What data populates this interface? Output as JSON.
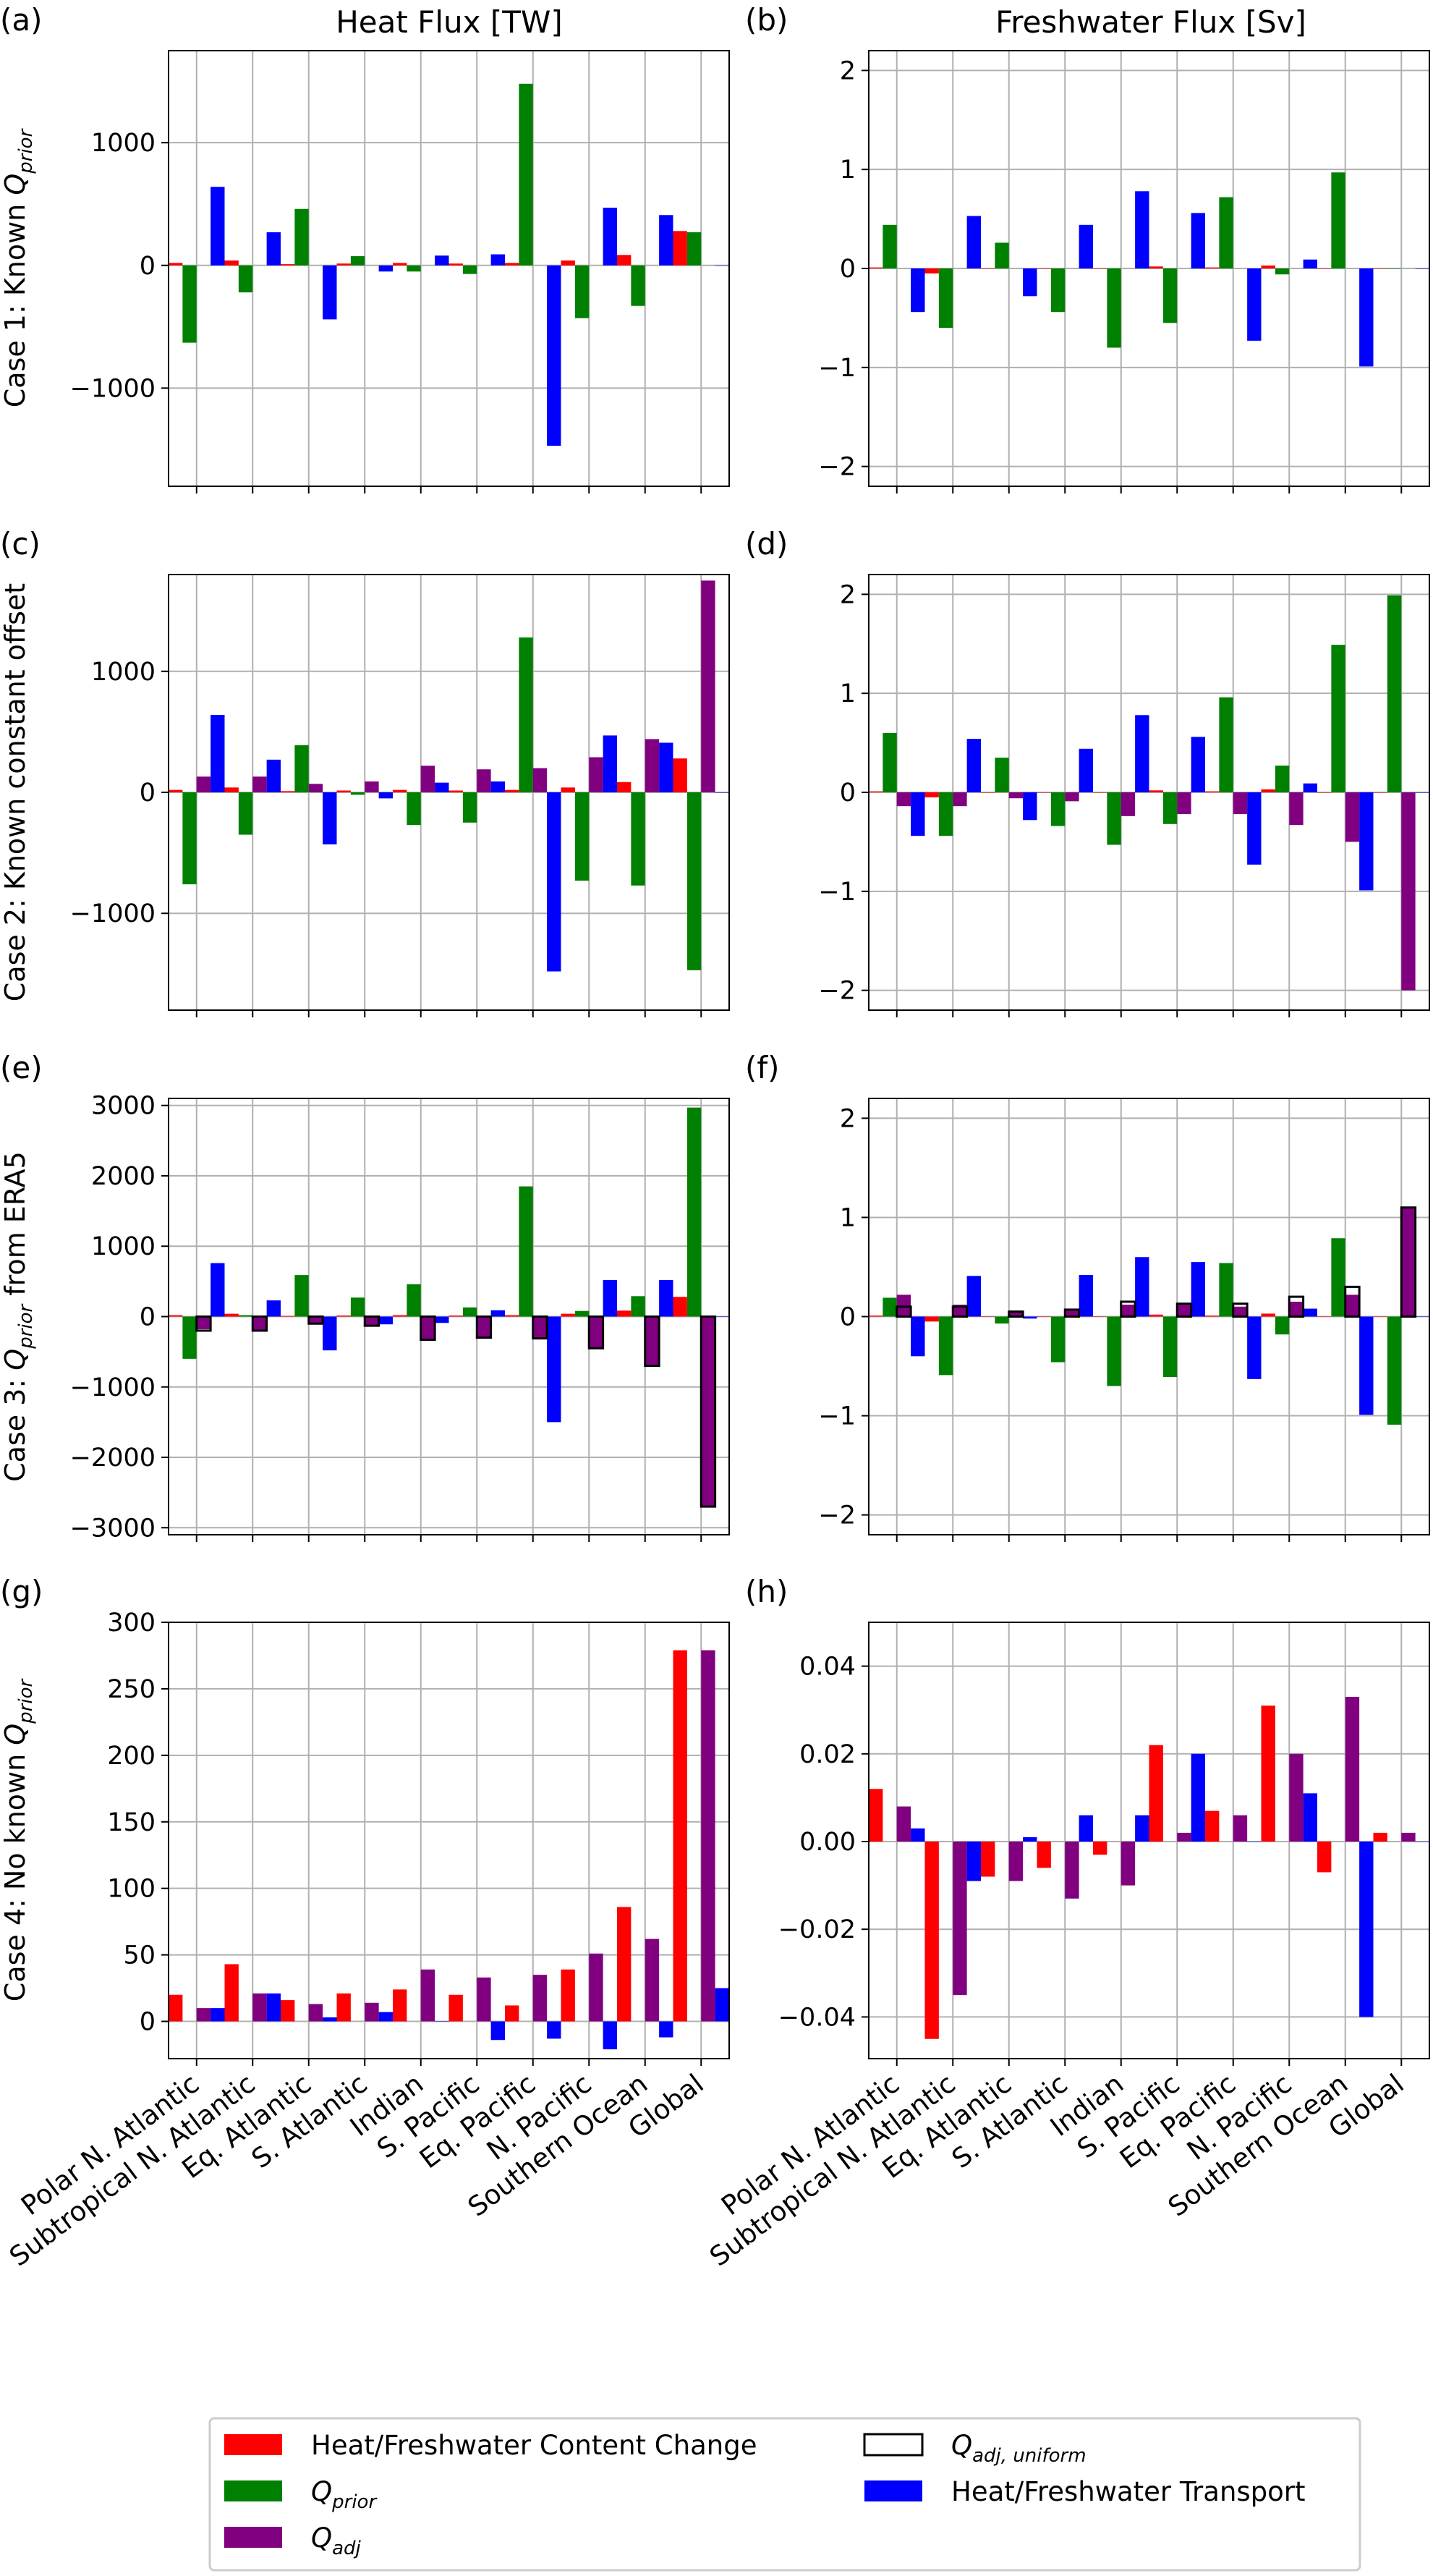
{
  "column_titles": [
    "Heat Flux [TW]",
    "Freshwater Flux [Sv]"
  ],
  "categories": [
    "Polar N. Atlantic",
    "Subtropical N. Atlantic",
    "Eq. Atlantic",
    "S. Atlantic",
    "Indian",
    "S. Pacific",
    "Eq. Pacific",
    "N. Pacific",
    "Southern Ocean",
    "Global"
  ],
  "colors": {
    "content_change": "#ff0000",
    "q_prior": "#008000",
    "q_adj": "#800080",
    "transport": "#0000ff",
    "q_adj_uniform_edge": "#000000",
    "grid": "#b0b0b0"
  },
  "legend": {
    "entries": [
      {
        "label": "Heat/Freshwater Content Change",
        "color": "#ff0000",
        "style": "filled"
      },
      {
        "label": "Q_prior",
        "label_main": "Q",
        "label_sub": "prior",
        "color": "#008000",
        "style": "filled"
      },
      {
        "label": "Q_adj",
        "label_main": "Q",
        "label_sub": "adj",
        "color": "#800080",
        "style": "filled"
      },
      {
        "label": "Q_adj,uniform",
        "label_main": "Q",
        "label_sub": "adj, uniform",
        "color": "#000000",
        "style": "outline"
      },
      {
        "label": "Heat/Freshwater Transport",
        "color": "#0000ff",
        "style": "filled"
      }
    ]
  },
  "chart_data": [
    {
      "panel": "(a)",
      "type": "bar",
      "ylabel": "Case 1: Known Q_prior",
      "ylabel_main": "Case 1: Known ",
      "ylabel_italic": "Q",
      "ylabel_sub": "prior",
      "ylim": [
        -1800,
        1750
      ],
      "yticks": [
        -1000,
        0,
        1000
      ],
      "ytick_labels": [
        "−1000",
        "0",
        "1000"
      ],
      "grid": true,
      "series": [
        {
          "key": "content_change",
          "values": [
            20,
            40,
            10,
            15,
            20,
            15,
            20,
            40,
            85,
            280
          ]
        },
        {
          "key": "q_prior",
          "values": [
            -630,
            -220,
            460,
            75,
            -50,
            -70,
            1480,
            -430,
            -330,
            270
          ]
        },
        {
          "key": "transport",
          "values": [
            640,
            270,
            -440,
            -50,
            80,
            90,
            -1470,
            470,
            410,
            0
          ]
        }
      ]
    },
    {
      "panel": "(b)",
      "type": "bar",
      "ylim": [
        -2.2,
        2.2
      ],
      "yticks": [
        -2,
        -1,
        0,
        1,
        2
      ],
      "ytick_labels": [
        "−2",
        "−1",
        "0",
        "1",
        "2"
      ],
      "grid": true,
      "series": [
        {
          "key": "content_change",
          "values": [
            0.01,
            -0.05,
            0.0,
            0.0,
            0.0,
            0.02,
            0.01,
            0.03,
            0.0,
            0.0
          ]
        },
        {
          "key": "q_prior",
          "values": [
            0.44,
            -0.6,
            0.26,
            -0.44,
            -0.8,
            -0.55,
            0.72,
            -0.06,
            0.97,
            0.0
          ]
        },
        {
          "key": "transport",
          "values": [
            -0.44,
            0.53,
            -0.28,
            0.44,
            0.78,
            0.56,
            -0.73,
            0.09,
            -0.99,
            0.0
          ]
        }
      ]
    },
    {
      "panel": "(c)",
      "type": "bar",
      "ylabel": "Case 2: Known constant offset",
      "ylim": [
        -1800,
        1800
      ],
      "yticks": [
        -1000,
        0,
        1000
      ],
      "ytick_labels": [
        "−1000",
        "0",
        "1000"
      ],
      "grid": true,
      "series": [
        {
          "key": "content_change",
          "values": [
            20,
            40,
            10,
            15,
            20,
            15,
            20,
            40,
            85,
            280
          ]
        },
        {
          "key": "q_prior",
          "values": [
            -760,
            -350,
            390,
            -20,
            -270,
            -250,
            1280,
            -730,
            -770,
            -1470
          ]
        },
        {
          "key": "q_adj",
          "values": [
            130,
            130,
            70,
            90,
            220,
            190,
            200,
            290,
            440,
            1750
          ]
        },
        {
          "key": "transport",
          "values": [
            640,
            270,
            -430,
            -50,
            80,
            90,
            -1480,
            470,
            410,
            0
          ]
        }
      ]
    },
    {
      "panel": "(d)",
      "type": "bar",
      "ylim": [
        -2.2,
        2.2
      ],
      "yticks": [
        -2,
        -1,
        0,
        1,
        2
      ],
      "ytick_labels": [
        "−2",
        "−1",
        "0",
        "1",
        "2"
      ],
      "grid": true,
      "series": [
        {
          "key": "content_change",
          "values": [
            0.01,
            -0.05,
            0.0,
            0.0,
            0.0,
            0.02,
            0.01,
            0.03,
            0.0,
            0.0
          ]
        },
        {
          "key": "q_prior",
          "values": [
            0.6,
            -0.44,
            0.35,
            -0.34,
            -0.53,
            -0.32,
            0.96,
            0.27,
            1.49,
            1.99
          ]
        },
        {
          "key": "q_adj",
          "values": [
            -0.14,
            -0.14,
            -0.06,
            -0.09,
            -0.24,
            -0.22,
            -0.22,
            -0.33,
            -0.5,
            -2.0
          ]
        },
        {
          "key": "transport",
          "values": [
            -0.44,
            0.54,
            -0.28,
            0.44,
            0.78,
            0.56,
            -0.73,
            0.09,
            -0.99,
            0.0
          ]
        }
      ]
    },
    {
      "panel": "(e)",
      "type": "bar",
      "ylabel": "Case 3: Q_prior from ERA5",
      "ylabel_main": "Case 3: ",
      "ylabel_italic": "Q",
      "ylabel_sub": "prior",
      "ylabel_tail": " from ERA5",
      "ylim": [
        -3100,
        3100
      ],
      "yticks": [
        -3000,
        -2000,
        -1000,
        0,
        1000,
        2000,
        3000
      ],
      "ytick_labels": [
        "−3000",
        "−2000",
        "−1000",
        "0",
        "1000",
        "2000",
        "3000"
      ],
      "grid": true,
      "series": [
        {
          "key": "content_change",
          "values": [
            20,
            40,
            10,
            15,
            20,
            15,
            20,
            40,
            85,
            280
          ]
        },
        {
          "key": "q_prior",
          "values": [
            -600,
            20,
            590,
            270,
            460,
            130,
            1850,
            80,
            290,
            2970
          ]
        },
        {
          "key": "q_adj",
          "values": [
            -180,
            -200,
            -90,
            -130,
            -330,
            -290,
            -300,
            -450,
            -700,
            -2700
          ]
        },
        {
          "key": "q_adj_uniform",
          "values": [
            -200,
            -200,
            -100,
            -130,
            -330,
            -300,
            -310,
            -450,
            -700,
            -2700
          ]
        },
        {
          "key": "transport",
          "values": [
            760,
            230,
            -480,
            -110,
            -90,
            90,
            -1500,
            520,
            520,
            0
          ]
        }
      ]
    },
    {
      "panel": "(f)",
      "type": "bar",
      "ylim": [
        -2.2,
        2.2
      ],
      "yticks": [
        -2,
        -1,
        0,
        1,
        2
      ],
      "ytick_labels": [
        "−2",
        "−1",
        "0",
        "1",
        "2"
      ],
      "grid": true,
      "series": [
        {
          "key": "content_change",
          "values": [
            0.01,
            -0.05,
            0.0,
            0.0,
            0.0,
            0.02,
            0.01,
            0.03,
            0.0,
            0.0
          ]
        },
        {
          "key": "q_prior",
          "values": [
            0.19,
            -0.59,
            -0.07,
            -0.46,
            -0.7,
            -0.61,
            0.54,
            -0.18,
            0.79,
            -1.09
          ]
        },
        {
          "key": "q_adj",
          "values": [
            0.22,
            0.12,
            0.06,
            0.06,
            0.12,
            0.12,
            0.1,
            0.15,
            0.22,
            1.1
          ]
        },
        {
          "key": "q_adj_uniform",
          "values": [
            0.1,
            0.1,
            0.05,
            0.07,
            0.15,
            0.13,
            0.13,
            0.2,
            0.3,
            1.1
          ]
        },
        {
          "key": "transport",
          "values": [
            -0.4,
            0.41,
            -0.02,
            0.42,
            0.6,
            0.55,
            -0.63,
            0.08,
            -0.99,
            0.0
          ]
        }
      ]
    },
    {
      "panel": "(g)",
      "type": "bar",
      "ylabel": "Case 4: No known Q_prior",
      "ylabel_main": "Case 4: No known ",
      "ylabel_italic": "Q",
      "ylabel_sub": "prior",
      "ylim": [
        -28,
        300
      ],
      "yticks": [
        0,
        50,
        100,
        150,
        200,
        250,
        300
      ],
      "ytick_labels": [
        "0",
        "50",
        "100",
        "150",
        "200",
        "250",
        "300"
      ],
      "grid": true,
      "series": [
        {
          "key": "content_change",
          "values": [
            20,
            43,
            16,
            21,
            24,
            20,
            12,
            39,
            86,
            279
          ]
        },
        {
          "key": "q_adj",
          "values": [
            10,
            21,
            13,
            14,
            39,
            33,
            35,
            51,
            62,
            279
          ]
        },
        {
          "key": "transport",
          "values": [
            10,
            21,
            3,
            7,
            0,
            -14,
            -13,
            -21,
            -12,
            25
          ]
        }
      ]
    },
    {
      "panel": "(h)",
      "type": "bar",
      "ylim": [
        -0.0495,
        0.05
      ],
      "yticks": [
        -0.04,
        -0.02,
        0.0,
        0.02,
        0.04
      ],
      "ytick_labels": [
        "−0.04",
        "−0.02",
        "0.00",
        "0.02",
        "0.04"
      ],
      "grid": true,
      "series": [
        {
          "key": "content_change",
          "values": [
            0.012,
            -0.045,
            -0.008,
            -0.006,
            -0.003,
            0.022,
            0.007,
            0.031,
            -0.007,
            0.002
          ]
        },
        {
          "key": "q_adj",
          "values": [
            0.008,
            -0.035,
            -0.009,
            -0.013,
            -0.01,
            0.002,
            0.006,
            0.02,
            0.033,
            0.002
          ]
        },
        {
          "key": "transport",
          "values": [
            0.003,
            -0.009,
            0.001,
            0.006,
            0.006,
            0.02,
            0.0,
            0.011,
            -0.04,
            0.0
          ]
        }
      ]
    }
  ]
}
